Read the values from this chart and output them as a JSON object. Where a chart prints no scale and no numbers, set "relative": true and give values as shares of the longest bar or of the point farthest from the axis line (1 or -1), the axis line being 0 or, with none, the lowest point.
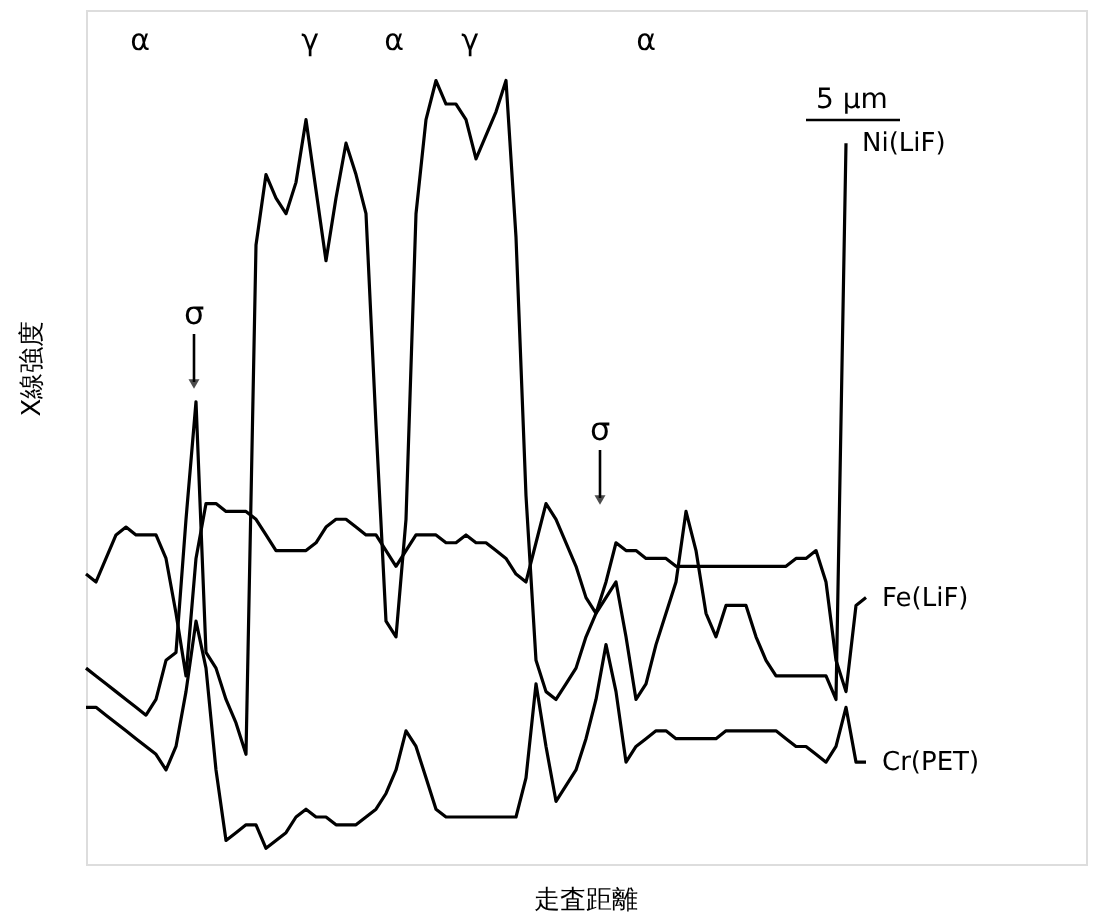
{
  "chart_data": {
    "type": "line",
    "relative": true,
    "xlabel": "走査距離",
    "ylabel": "X線強度",
    "tick_labels": false,
    "grid": false,
    "marker": "none",
    "line_style": "solid",
    "categories": [
      null,
      null,
      null,
      null,
      null,
      null,
      null,
      null,
      null,
      null,
      null,
      null,
      null,
      null,
      null,
      null,
      null,
      null,
      null,
      null,
      null,
      null,
      null,
      null,
      null,
      null,
      null,
      null,
      null,
      null,
      null,
      null,
      null,
      null,
      null,
      null,
      null,
      null,
      null,
      null,
      null,
      null,
      null,
      null,
      null,
      null,
      null,
      null,
      null,
      null,
      null,
      null,
      null,
      null,
      null,
      null,
      null,
      null,
      null,
      null,
      null,
      null,
      null,
      null,
      null,
      null,
      null,
      null,
      null,
      null,
      null,
      null,
      null,
      null,
      null,
      null,
      null,
      null,
      null,
      null,
      null,
      null,
      null,
      null,
      null,
      null,
      null,
      null,
      null,
      null,
      null,
      null,
      null,
      null,
      null,
      null,
      null,
      null,
      null,
      null,
      null
    ],
    "annotations": [
      "α",
      "γ",
      "α",
      "γ",
      "α",
      "σ",
      "σ",
      "5 µm"
    ],
    "series": [
      {
        "name": "Ni(LiF)",
        "color": "#000000",
        "values": [
          0.25,
          0.24,
          0.23,
          0.22,
          0.21,
          0.2,
          0.19,
          0.21,
          0.26,
          0.27,
          0.44,
          0.59,
          0.27,
          0.25,
          0.21,
          0.18,
          0.14,
          0.79,
          0.88,
          0.85,
          0.83,
          0.87,
          0.95,
          0.86,
          0.77,
          0.85,
          0.92,
          0.88,
          0.83,
          0.56,
          0.31,
          0.29,
          0.44,
          0.83,
          0.95,
          1.0,
          0.97,
          0.97,
          0.95,
          0.9,
          0.93,
          0.96,
          1.0,
          0.8,
          0.47,
          0.26,
          0.22,
          0.21,
          0.23,
          0.25,
          0.29,
          0.32,
          0.34,
          0.36,
          0.29,
          0.21,
          0.23,
          0.28,
          0.32,
          0.36,
          0.45,
          0.4,
          0.32,
          0.29,
          0.33,
          0.33,
          0.33,
          0.29,
          0.26,
          0.24,
          0.24,
          0.24,
          0.24,
          0.24,
          0.24,
          0.21,
          0.92,
          null,
          null,
          null,
          null,
          null,
          null,
          null,
          null,
          null,
          null,
          null,
          null,
          null,
          null,
          null,
          null,
          null,
          null,
          null,
          null,
          null,
          null,
          null,
          null
        ]
      },
      {
        "name": "Fe(LiF)",
        "color": "#000000",
        "values": [
          0.37,
          0.36,
          0.39,
          0.42,
          0.43,
          0.42,
          0.42,
          0.42,
          0.39,
          0.32,
          0.24,
          0.39,
          0.46,
          0.46,
          0.45,
          0.45,
          0.45,
          0.44,
          0.42,
          0.4,
          0.4,
          0.4,
          0.4,
          0.41,
          0.43,
          0.44,
          0.44,
          0.43,
          0.42,
          0.42,
          0.4,
          0.38,
          0.4,
          0.42,
          0.42,
          0.42,
          0.41,
          0.41,
          0.42,
          0.41,
          0.41,
          0.4,
          0.39,
          0.37,
          0.36,
          0.41,
          0.46,
          0.44,
          0.41,
          0.38,
          0.34,
          0.32,
          0.36,
          0.41,
          0.4,
          0.4,
          0.39,
          0.39,
          0.39,
          0.38,
          0.38,
          0.38,
          0.38,
          0.38,
          0.38,
          0.38,
          0.38,
          0.38,
          0.38,
          0.38,
          0.38,
          0.39,
          0.39,
          0.4,
          0.36,
          0.26,
          0.22,
          0.33,
          0.34,
          null,
          null,
          null,
          null,
          null,
          null,
          null,
          null,
          null,
          null,
          null,
          null,
          null,
          null,
          null,
          null,
          null,
          null,
          null,
          null,
          null,
          null
        ]
      },
      {
        "name": "Cr(PET)",
        "color": "#000000",
        "values": [
          0.2,
          0.2,
          0.19,
          0.18,
          0.17,
          0.16,
          0.15,
          0.14,
          0.12,
          0.15,
          0.22,
          0.31,
          0.25,
          0.12,
          0.03,
          0.04,
          0.05,
          0.05,
          0.02,
          0.03,
          0.04,
          0.06,
          0.07,
          0.06,
          0.06,
          0.05,
          0.05,
          0.05,
          0.06,
          0.07,
          0.09,
          0.12,
          0.17,
          0.15,
          0.11,
          0.07,
          0.06,
          0.06,
          0.06,
          0.06,
          0.06,
          0.06,
          0.06,
          0.06,
          0.11,
          0.23,
          0.15,
          0.08,
          0.1,
          0.12,
          0.16,
          0.21,
          0.28,
          0.22,
          0.13,
          0.15,
          0.16,
          0.17,
          0.17,
          0.16,
          0.16,
          0.16,
          0.16,
          0.16,
          0.17,
          0.17,
          0.17,
          0.17,
          0.17,
          0.17,
          0.16,
          0.15,
          0.15,
          0.14,
          0.13,
          0.15,
          0.2,
          0.13,
          0.13,
          null,
          null,
          null,
          null,
          null,
          null,
          null,
          null,
          null,
          null,
          null,
          null,
          null,
          null,
          null,
          null,
          null,
          null,
          null,
          null,
          null,
          null
        ]
      }
    ]
  }
}
